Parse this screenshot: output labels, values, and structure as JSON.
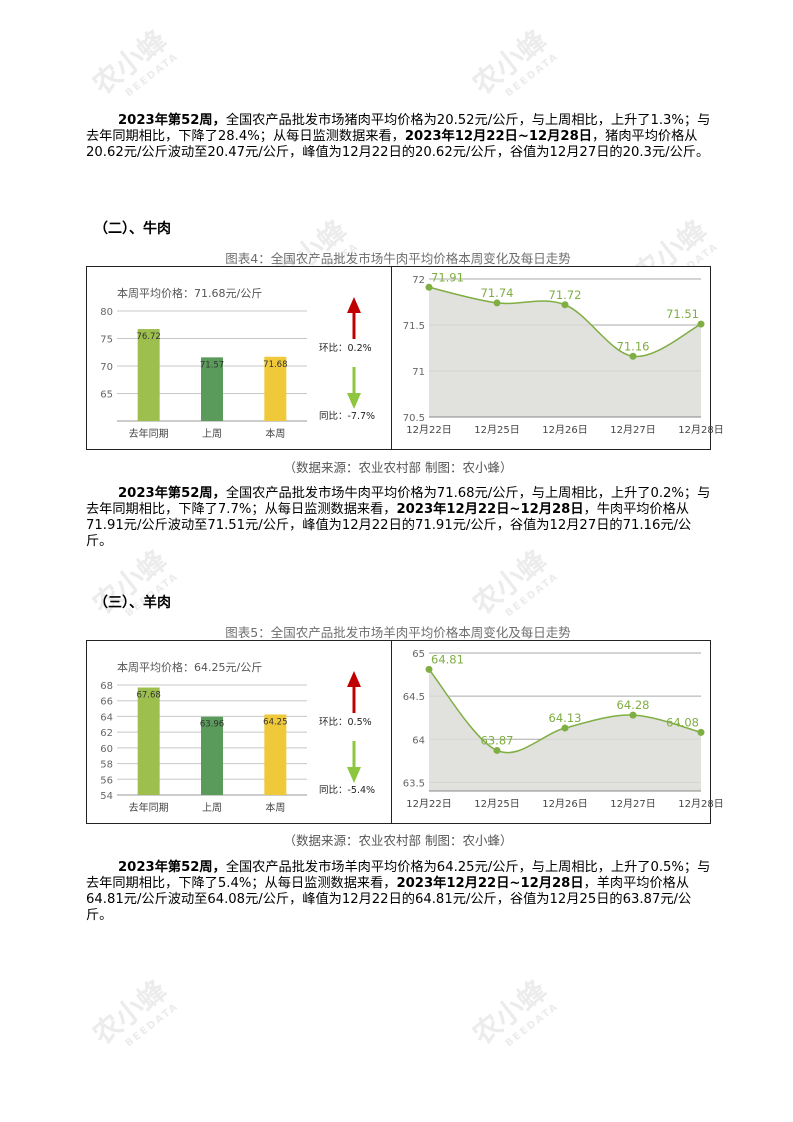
{
  "watermark": {
    "text": "农小蜂",
    "sub": "BEEDATA"
  },
  "pork_para": {
    "week": "2023年第52周，",
    "t1": "全国农产品批发市场猪肉平均价格为20.52元/公斤，与上周相比，上升了1.3%；与去年同期相比，下降了28.4%；从每日监测数据来看，",
    "range": "2023年12月22日~12月28日",
    "t2": "，猪肉平均价格从20.62元/公斤波动至20.47元/公斤，峰值为12月22日的20.62元/公斤，谷值为12月27日的20.3元/公斤。"
  },
  "beef": {
    "heading": "（二）、牛肉",
    "caption": "图表4：全国农产品批发市场牛肉平均价格本周变化及每日走势",
    "source": "（数据来源：农业农村部    制图：农小蜂）",
    "para": {
      "week": "2023年第52周，",
      "t1": "全国农产品批发市场牛肉平均价格为71.68元/公斤，与上周相比，上升了0.2%；与去年同期相比，下降了7.7%；从每日监测数据来看，",
      "range": "2023年12月22日~12月28日",
      "t2": "，牛肉平均价格从71.91元/公斤波动至71.51元/公斤，峰值为12月22日的71.91元/公斤，谷值为12月27日的71.16元/公斤。"
    }
  },
  "mutton": {
    "heading": "（三）、羊肉",
    "caption": "图表5：全国农产品批发市场羊肉平均价格本周变化及每日走势",
    "source": "（数据来源：农业农村部    制图：农小蜂）",
    "para": {
      "week": "2023年第52周，",
      "t1": "全国农产品批发市场羊肉平均价格为64.25元/公斤，与上周相比，上升了0.5%；与去年同期相比，下降了5.4%；从每日监测数据来看，",
      "range": "2023年12月22日~12月28日",
      "t2": "，羊肉平均价格从64.81元/公斤波动至64.08元/公斤，峰值为12月22日的64.81元/公斤，谷值为12月25日的63.87元/公斤。"
    }
  },
  "chart_data": [
    {
      "type": "bar",
      "title": "本周平均价格：71.68元/公斤",
      "categories": [
        "去年同期",
        "上周",
        "本周"
      ],
      "values": [
        76.72,
        71.57,
        71.68
      ],
      "labels": [
        "76.72",
        "71.57",
        "71.68"
      ],
      "ylim": [
        60,
        80
      ],
      "yticks": [
        65,
        70,
        75,
        80
      ],
      "colors": [
        "#9dbf4e",
        "#5a9a5a",
        "#f0c93a"
      ],
      "huanbi": "环比：0.2%",
      "tongbi": "同比：-7.7%",
      "up_color": "#c00000",
      "down_color": "#8dc63f"
    },
    {
      "type": "area",
      "x": [
        "12月22日",
        "12月25日",
        "12月26日",
        "12月27日",
        "12月28日"
      ],
      "values": [
        71.91,
        71.74,
        71.72,
        71.16,
        71.51
      ],
      "labels": [
        "71.91",
        "71.74",
        "71.72",
        "71.16",
        "71.51"
      ],
      "ylim": [
        70.5,
        72
      ],
      "yticks": [
        70.5,
        71,
        71.5,
        72
      ],
      "line_color": "#7fae43",
      "fill_color": "#dcdcd8"
    },
    {
      "type": "bar",
      "title": "本周平均价格：64.25元/公斤",
      "categories": [
        "去年同期",
        "上周",
        "本周"
      ],
      "values": [
        67.68,
        63.96,
        64.25
      ],
      "labels": [
        "67.68",
        "63.96",
        "64.25"
      ],
      "ylim": [
        54,
        68
      ],
      "yticks": [
        54,
        56,
        58,
        60,
        62,
        64,
        66,
        68
      ],
      "colors": [
        "#9dbf4e",
        "#5a9a5a",
        "#f0c93a"
      ],
      "huanbi": "环比：0.5%",
      "tongbi": "同比：-5.4%",
      "up_color": "#c00000",
      "down_color": "#8dc63f"
    },
    {
      "type": "area",
      "x": [
        "12月22日",
        "12月25日",
        "12月26日",
        "12月27日",
        "12月28日"
      ],
      "values": [
        64.81,
        63.87,
        64.13,
        64.28,
        64.08
      ],
      "labels": [
        "64.81",
        "63.87",
        "64.13",
        "64.28",
        "64.08"
      ],
      "ylim": [
        63.4,
        65
      ],
      "yticks": [
        63.5,
        64,
        64.5,
        65
      ],
      "line_color": "#7fae43",
      "fill_color": "#dcdcd8"
    }
  ]
}
